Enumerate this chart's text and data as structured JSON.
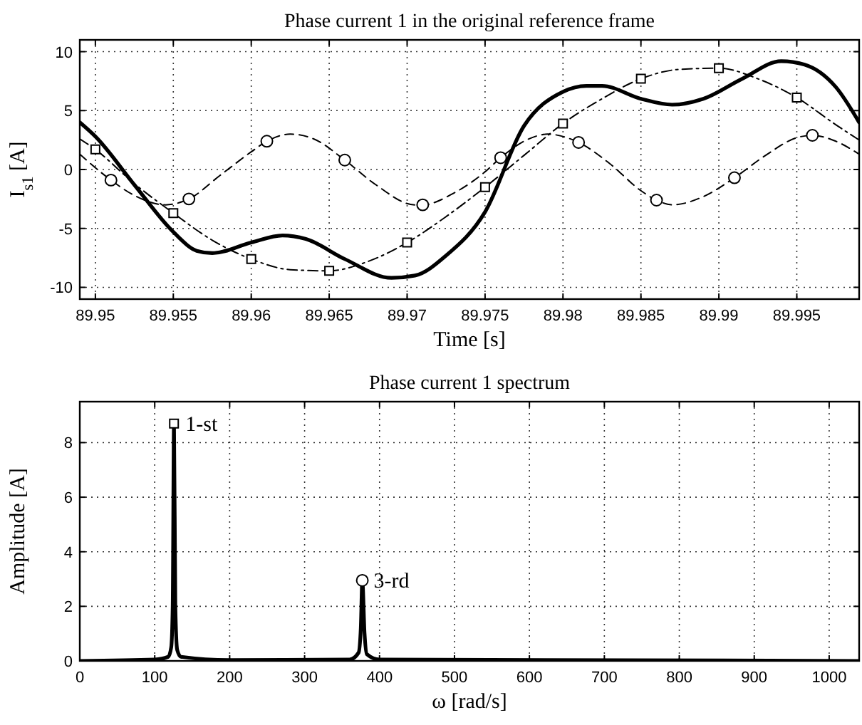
{
  "chart_data": [
    {
      "type": "line",
      "title": "Phase current 1 in the original reference frame",
      "xlabel": "Time [s]",
      "ylabel": "I$_{s1}$ [A]",
      "xlim": [
        89.949,
        89.999
      ],
      "ylim": [
        -11,
        11
      ],
      "xticks": [
        89.95,
        89.955,
        89.96,
        89.965,
        89.97,
        89.975,
        89.98,
        89.985,
        89.99,
        89.995
      ],
      "yticks": [
        -10,
        -5,
        0,
        5,
        10
      ],
      "grid": true,
      "series": [
        {
          "color": "#000000",
          "line_style": "dashdot",
          "marker": "none",
          "x": [
            89.949,
            89.95,
            89.9525,
            89.955,
            89.9575,
            89.96,
            89.9625,
            89.965,
            89.9675,
            89.97,
            89.9725,
            89.975,
            89.9775,
            89.98,
            89.9825,
            89.985,
            89.9875,
            89.99,
            89.9925,
            89.995,
            89.9975,
            89.999
          ],
          "values": [
            2.6,
            1.7,
            -1.2,
            -3.7,
            -6.0,
            -7.6,
            -8.5,
            -8.6,
            -7.8,
            -6.2,
            -4.0,
            -1.5,
            1.2,
            3.9,
            6.0,
            7.7,
            8.5,
            8.6,
            7.7,
            6.1,
            3.8,
            2.5
          ]
        },
        {
          "color": "#000000",
          "line_style": "dashed",
          "marker": "none",
          "x": [
            89.949,
            89.951,
            89.9525,
            89.9545,
            89.956,
            89.958,
            89.96,
            89.961,
            89.9625,
            89.964,
            89.966,
            89.968,
            89.9705,
            89.971,
            89.973,
            89.975,
            89.976,
            89.978,
            89.979,
            89.981,
            89.983,
            89.985,
            89.986,
            89.987,
            89.989,
            89.991,
            89.993,
            89.995,
            89.996,
            89.9975,
            89.999
          ],
          "values": [
            1.3,
            -0.9,
            -2.2,
            -3.0,
            -2.5,
            -0.5,
            1.5,
            2.4,
            3.0,
            2.6,
            0.8,
            -1.3,
            -3.0,
            -3.0,
            -2.0,
            -0.2,
            1.0,
            2.7,
            3.0,
            2.3,
            0.5,
            -1.8,
            -2.6,
            -3.0,
            -2.3,
            -0.7,
            1.2,
            2.7,
            2.9,
            2.4,
            1.3
          ]
        },
        {
          "color": "#000000",
          "line_style": "solid",
          "marker": "none",
          "x": [
            89.949,
            89.95,
            89.9525,
            89.955,
            89.9565,
            89.9575,
            89.96,
            89.962,
            89.9635,
            89.966,
            89.969,
            89.9705,
            89.9725,
            89.975,
            89.9775,
            89.98,
            89.9815,
            89.9825,
            89.985,
            89.987,
            89.989,
            89.9915,
            89.994,
            89.9955,
            89.9975,
            89.999
          ],
          "values": [
            4.0,
            2.8,
            -1.3,
            -5.3,
            -6.9,
            -7.1,
            -6.2,
            -5.6,
            -5.9,
            -7.6,
            -9.2,
            -9.0,
            -7.3,
            -3.6,
            3.7,
            6.6,
            7.1,
            7.1,
            6.0,
            5.5,
            6.0,
            7.7,
            9.2,
            8.9,
            7.0,
            4.0
          ]
        },
        {
          "type": "scatter",
          "color": "#000000",
          "marker": "square",
          "x": [
            89.95,
            89.955,
            89.96,
            89.965,
            89.97,
            89.975,
            89.98,
            89.985,
            89.99,
            89.995
          ],
          "values": [
            1.7,
            -3.7,
            -7.6,
            -8.6,
            -6.2,
            -1.5,
            3.9,
            7.7,
            8.6,
            6.1
          ]
        },
        {
          "type": "scatter",
          "color": "#000000",
          "marker": "circle",
          "x": [
            89.951,
            89.956,
            89.961,
            89.966,
            89.971,
            89.976,
            89.981,
            89.986,
            89.991,
            89.996
          ],
          "values": [
            -0.9,
            -2.5,
            2.4,
            0.8,
            -3.0,
            1.0,
            2.3,
            -2.6,
            -0.7,
            2.9
          ]
        }
      ]
    },
    {
      "type": "line",
      "title": "Phase current 1 spectrum",
      "xlabel": "ω [rad/s]",
      "ylabel": "Amplitude [A]",
      "xlim": [
        0,
        1040
      ],
      "ylim": [
        0,
        9.5
      ],
      "xticks": [
        0,
        100,
        200,
        300,
        400,
        500,
        600,
        700,
        800,
        900,
        1000
      ],
      "yticks": [
        0,
        2,
        4,
        6,
        8
      ],
      "grid": true,
      "annotations": [
        {
          "text": "1-st",
          "x": 125.7,
          "y": 8.7
        },
        {
          "text": "3-rd",
          "x": 377,
          "y": 2.95
        }
      ],
      "series": [
        {
          "color": "#000000",
          "line_style": "solid",
          "marker": "none",
          "x": [
            0,
            100,
            118,
            122,
            124,
            125.7,
            127.5,
            130,
            135,
            200,
            360,
            372,
            375,
            377,
            380,
            383,
            400,
            1040
          ],
          "values": [
            0,
            0.05,
            0.15,
            0.5,
            2,
            8.7,
            2,
            0.4,
            0.15,
            0.03,
            0.05,
            0.3,
            1.2,
            2.95,
            1,
            0.25,
            0.05,
            0
          ]
        },
        {
          "type": "scatter",
          "color": "#000000",
          "marker": "square",
          "x": [
            125.7
          ],
          "values": [
            8.7
          ]
        },
        {
          "type": "scatter",
          "color": "#000000",
          "marker": "circle",
          "x": [
            377
          ],
          "values": [
            2.95
          ]
        }
      ]
    }
  ]
}
